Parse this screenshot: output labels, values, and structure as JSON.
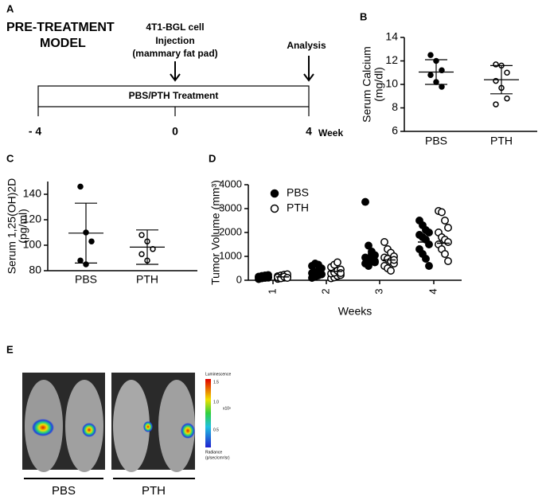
{
  "diagram": {
    "panel": "A",
    "title": [
      "PRE-TREATMENT",
      "MODEL"
    ],
    "injection": [
      "4T1-BGL cell",
      "Injection",
      "(mammary fat pad)"
    ],
    "analysis": "Analysis",
    "treatment": "PBS/PTH Treatment",
    "timepoints": [
      "- 4",
      "0",
      "4"
    ],
    "unit": "Week"
  },
  "chart_data": [
    {
      "type": "dot",
      "panel": "B",
      "ylabel": [
        "Serum Calcium",
        "(mg/dl)"
      ],
      "categories": [
        "PBS",
        "PTH"
      ],
      "values": [
        [
          12.5,
          12.0,
          11.2,
          10.8,
          10.2,
          9.8
        ],
        [
          11.7,
          11.6,
          11.0,
          10.3,
          9.7,
          8.8,
          8.3
        ]
      ],
      "mean": [
        11.05,
        10.4
      ],
      "sd": [
        1.05,
        1.2
      ],
      "ylim": [
        6,
        14
      ],
      "yticks": [
        6,
        8,
        10,
        12,
        14
      ]
    },
    {
      "type": "dot",
      "panel": "C",
      "ylabel": [
        "Serum 1,25(OH)2D",
        "(pg/ml)"
      ],
      "categories": [
        "PBS",
        "PTH"
      ],
      "values": [
        [
          146,
          110,
          103,
          88,
          85
        ],
        [
          108,
          103,
          97,
          93,
          88
        ]
      ],
      "mean": [
        109.5,
        98.5
      ],
      "sd": [
        23.5,
        13.5
      ],
      "ylim": [
        80,
        150
      ],
      "yticks": [
        80,
        100,
        120,
        140
      ]
    },
    {
      "type": "dot",
      "panel": "D",
      "ylabel": "Tumor Volume (mm³)",
      "xlabel": "Weeks",
      "categories": [
        "1",
        "2",
        "3",
        "4"
      ],
      "series": [
        {
          "name": "PBS",
          "marker": "filled",
          "mean": [
            130,
            380,
            950,
            1600
          ],
          "values": [
            [
              50,
              80,
              100,
              120,
              150,
              180,
              200,
              220,
              130,
              90,
              160,
              110
            ],
            [
              100,
              150,
              200,
              250,
              300,
              350,
              400,
              500,
              600,
              700,
              650,
              250
            ],
            [
              3280,
              1450,
              1200,
              1050,
              950,
              900,
              850,
              800,
              700,
              600,
              1100,
              750
            ],
            [
              2500,
              2300,
              2100,
              2000,
              1900,
              1800,
              1700,
              1500,
              1300,
              1100,
              900,
              600
            ]
          ]
        },
        {
          "name": "PTH",
          "marker": "open",
          "mean": [
            140,
            370,
            850,
            1550
          ],
          "values": [
            [
              60,
              90,
              110,
              140,
              170,
              200,
              230,
              250,
              120,
              80,
              150,
              100
            ],
            [
              80,
              120,
              180,
              220,
              280,
              320,
              400,
              450,
              550,
              650,
              750,
              300
            ],
            [
              1600,
              1300,
              1150,
              1000,
              950,
              900,
              800,
              700,
              600,
              500,
              400,
              850
            ],
            [
              2900,
              2850,
              2500,
              2200,
              2000,
              1800,
              1700,
              1600,
              1500,
              1300,
              1100,
              800
            ]
          ]
        }
      ],
      "ylim": [
        0,
        4000
      ],
      "yticks": [
        0,
        1000,
        2000,
        3000,
        4000
      ]
    }
  ],
  "imaging": {
    "panel": "E",
    "colorbar": {
      "title": "Luminescence",
      "ticks": [
        "1.5",
        "1.0",
        "0.5"
      ],
      "scale": "x10⁸",
      "unit": [
        "Radiance",
        "(p/sec/cm²/sr)"
      ]
    },
    "groups": [
      "PBS",
      "PTH"
    ]
  }
}
